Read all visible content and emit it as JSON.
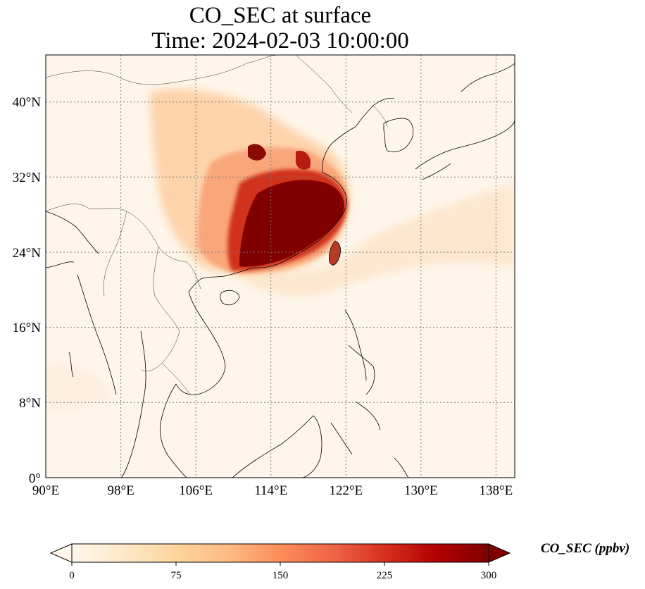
{
  "title": {
    "line1": "CO_SEC at surface",
    "line2": "Time: 2024-02-03 10:00:00"
  },
  "map": {
    "lon_range": [
      90,
      140
    ],
    "lat_range": [
      0,
      45
    ],
    "x_ticks": [
      "90°E",
      "98°E",
      "106°E",
      "114°E",
      "122°E",
      "130°E",
      "138°E"
    ],
    "x_tick_values": [
      90,
      98,
      106,
      114,
      122,
      130,
      138
    ],
    "y_ticks": [
      "0°",
      "8°N",
      "16°N",
      "24°N",
      "32°N",
      "40°N"
    ],
    "y_tick_values": [
      0,
      8,
      16,
      24,
      32,
      40
    ],
    "gridlines": true,
    "colormap": "OrRd",
    "max_region": "southeastern China coast"
  },
  "colorbar": {
    "label": "CO_SEC (ppbv)",
    "ticks": [
      "0",
      "75",
      "150",
      "225",
      "300"
    ],
    "min": 0,
    "max": 300,
    "extend": "both",
    "colors": [
      "#fff7ec",
      "#fee8c8",
      "#fdd49e",
      "#fdbb84",
      "#fc8d59",
      "#ef6548",
      "#d7301f",
      "#b30000",
      "#7f0000"
    ]
  }
}
